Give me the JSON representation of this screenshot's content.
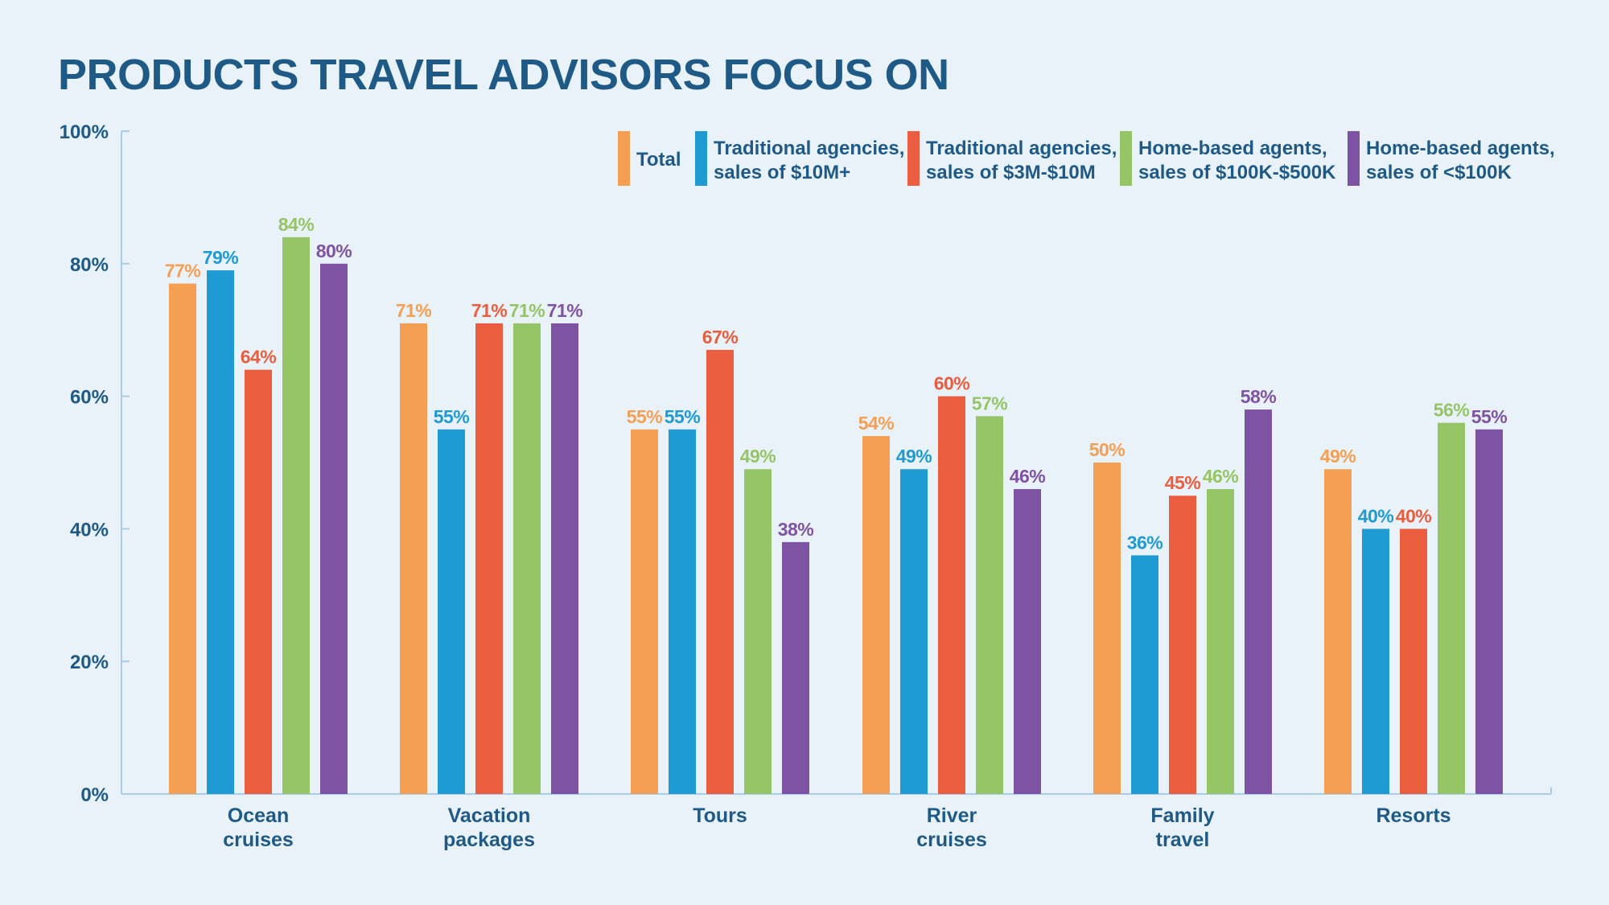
{
  "chart_data": {
    "type": "bar",
    "title": "PRODUCTS TRAVEL ADVISORS FOCUS ON",
    "xlabel": "",
    "ylabel": "",
    "ylim": [
      0,
      100
    ],
    "yticks": [
      "0%",
      "20%",
      "40%",
      "60%",
      "80%",
      "100%"
    ],
    "y_tick_values": [
      0,
      20,
      40,
      60,
      80,
      100
    ],
    "grid": false,
    "legend_position": "top-right",
    "categories": [
      [
        "Ocean",
        "cruises"
      ],
      [
        "Vacation",
        "packages"
      ],
      [
        "Tours"
      ],
      [
        "River",
        "cruises"
      ],
      [
        "Family",
        "travel"
      ],
      [
        "Resorts"
      ]
    ],
    "series": [
      {
        "name": [
          "Total"
        ],
        "color": "#f59f54",
        "values": [
          77,
          71,
          55,
          54,
          50,
          49
        ],
        "labels": [
          "77%",
          "71%",
          "55%",
          "54%",
          "50%",
          "49%"
        ]
      },
      {
        "name": [
          "Traditional agencies,",
          "sales of $10M+"
        ],
        "color": "#1f9ad3",
        "values": [
          79,
          55,
          55,
          49,
          36,
          40
        ],
        "labels": [
          "79%",
          "55%",
          "55%",
          "49%",
          "36%",
          "40%"
        ]
      },
      {
        "name": [
          "Traditional agencies,",
          "sales of $3M-$10M"
        ],
        "color": "#ea5e3f",
        "values": [
          64,
          71,
          67,
          60,
          45,
          40
        ],
        "labels": [
          "64%",
          "71%",
          "67%",
          "60%",
          "45%",
          "40%"
        ]
      },
      {
        "name": [
          "Home-based agents,",
          "sales of $100K-$500K"
        ],
        "color": "#95c566",
        "values": [
          84,
          71,
          49,
          57,
          46,
          56
        ],
        "labels": [
          "84%",
          "71%",
          "49%",
          "57%",
          "46%",
          "56%"
        ]
      },
      {
        "name": [
          "Home-based agents,",
          "sales of <$100K"
        ],
        "color": "#7f53a3",
        "values": [
          80,
          71,
          38,
          46,
          58,
          55
        ],
        "labels": [
          "80%",
          "71%",
          "38%",
          "46%",
          "58%",
          "55%"
        ]
      }
    ]
  },
  "colors": {
    "background": "#e9f2f9",
    "text": "#1f5a87",
    "axis": "#a9cde6"
  }
}
